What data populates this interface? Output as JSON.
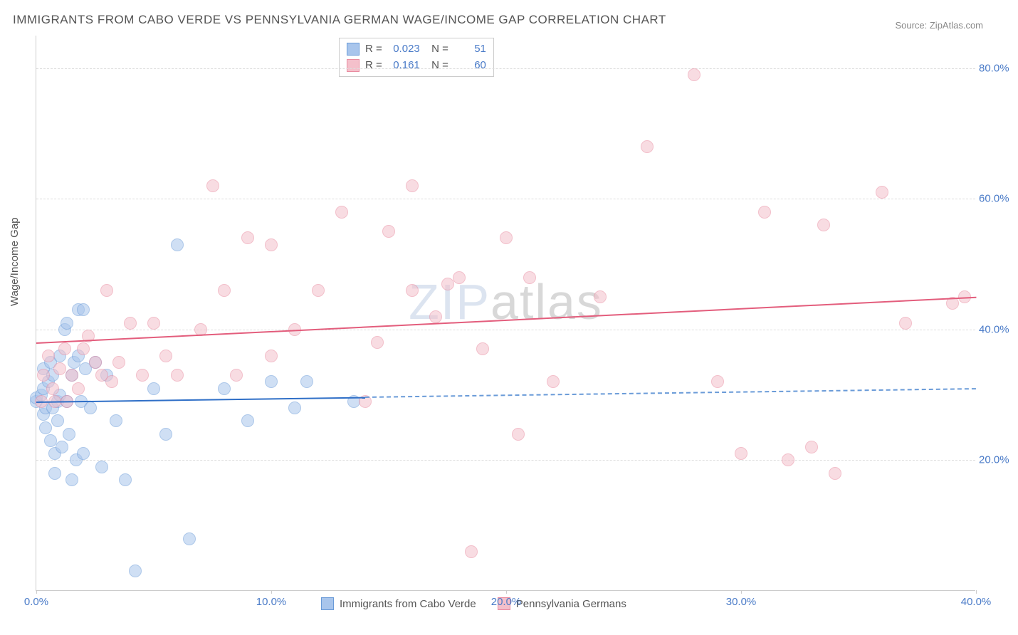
{
  "title": "IMMIGRANTS FROM CABO VERDE VS PENNSYLVANIA GERMAN WAGE/INCOME GAP CORRELATION CHART",
  "source": "Source: ZipAtlas.com",
  "y_axis_label": "Wage/Income Gap",
  "watermark_a": "ZIP",
  "watermark_b": "atlas",
  "chart": {
    "type": "scatter",
    "background_color": "#ffffff",
    "grid_color": "#dddddd",
    "axis_color": "#cccccc",
    "tick_label_color": "#4a7bc8",
    "title_fontsize": 17,
    "label_fontsize": 15,
    "xlim": [
      0,
      40
    ],
    "ylim": [
      0,
      85
    ],
    "x_ticks": [
      0,
      10,
      20,
      30,
      40
    ],
    "x_tick_labels": [
      "0.0%",
      "10.0%",
      "20.0%",
      "30.0%",
      "40.0%"
    ],
    "y_ticks": [
      20,
      40,
      60,
      80
    ],
    "y_tick_labels": [
      "20.0%",
      "40.0%",
      "60.0%",
      "80.0%"
    ],
    "marker_radius": 9,
    "marker_opacity": 0.55,
    "series": [
      {
        "name": "Immigrants from Cabo Verde",
        "color_fill": "#a8c5ec",
        "color_stroke": "#6a9bd8",
        "line_color": "#2f6fc7",
        "R": "0.023",
        "N": "51",
        "trend": {
          "x1": 0,
          "y1": 29,
          "x2": 40,
          "y2": 31,
          "solid_until_x": 14
        },
        "points": [
          [
            0.0,
            29
          ],
          [
            0.0,
            29.5
          ],
          [
            0.2,
            30
          ],
          [
            0.3,
            27
          ],
          [
            0.3,
            31
          ],
          [
            0.3,
            34
          ],
          [
            0.4,
            28
          ],
          [
            0.4,
            25
          ],
          [
            0.5,
            32
          ],
          [
            0.6,
            23
          ],
          [
            0.6,
            35
          ],
          [
            0.7,
            28
          ],
          [
            0.7,
            33
          ],
          [
            0.8,
            21
          ],
          [
            0.8,
            18
          ],
          [
            0.9,
            29
          ],
          [
            0.9,
            26
          ],
          [
            1.0,
            36
          ],
          [
            1.0,
            30
          ],
          [
            1.1,
            22
          ],
          [
            1.2,
            40
          ],
          [
            1.3,
            41
          ],
          [
            1.3,
            29
          ],
          [
            1.4,
            24
          ],
          [
            1.5,
            33
          ],
          [
            1.5,
            17
          ],
          [
            1.6,
            35
          ],
          [
            1.7,
            20
          ],
          [
            1.8,
            36
          ],
          [
            1.8,
            43
          ],
          [
            1.9,
            29
          ],
          [
            2.0,
            21
          ],
          [
            2.0,
            43
          ],
          [
            2.1,
            34
          ],
          [
            2.3,
            28
          ],
          [
            2.5,
            35
          ],
          [
            2.8,
            19
          ],
          [
            3.0,
            33
          ],
          [
            3.4,
            26
          ],
          [
            3.8,
            17
          ],
          [
            4.2,
            3
          ],
          [
            5.0,
            31
          ],
          [
            5.5,
            24
          ],
          [
            6.0,
            53
          ],
          [
            6.5,
            8
          ],
          [
            8.0,
            31
          ],
          [
            9.0,
            26
          ],
          [
            10.0,
            32
          ],
          [
            11.0,
            28
          ],
          [
            11.5,
            32
          ],
          [
            13.5,
            29
          ]
        ]
      },
      {
        "name": "Pennsylvania Germans",
        "color_fill": "#f4c0cb",
        "color_stroke": "#e98ba0",
        "line_color": "#e35d7c",
        "R": "0.161",
        "N": "60",
        "trend": {
          "x1": 0,
          "y1": 38,
          "x2": 40,
          "y2": 45,
          "solid_until_x": 40
        },
        "points": [
          [
            0.2,
            29
          ],
          [
            0.3,
            33
          ],
          [
            0.5,
            36
          ],
          [
            0.7,
            31
          ],
          [
            0.8,
            29
          ],
          [
            1.0,
            34
          ],
          [
            1.2,
            37
          ],
          [
            1.3,
            29
          ],
          [
            1.5,
            33
          ],
          [
            1.8,
            31
          ],
          [
            2.0,
            37
          ],
          [
            2.2,
            39
          ],
          [
            2.5,
            35
          ],
          [
            2.8,
            33
          ],
          [
            3.0,
            46
          ],
          [
            3.2,
            32
          ],
          [
            3.5,
            35
          ],
          [
            4.0,
            41
          ],
          [
            4.5,
            33
          ],
          [
            5.0,
            41
          ],
          [
            5.5,
            36
          ],
          [
            6.0,
            33
          ],
          [
            7.0,
            40
          ],
          [
            7.5,
            62
          ],
          [
            8.0,
            46
          ],
          [
            8.5,
            33
          ],
          [
            9.0,
            54
          ],
          [
            10.0,
            53
          ],
          [
            10.0,
            36
          ],
          [
            11.0,
            40
          ],
          [
            12.0,
            46
          ],
          [
            13.0,
            58
          ],
          [
            14.0,
            29
          ],
          [
            14.5,
            38
          ],
          [
            15.0,
            55
          ],
          [
            16.0,
            46
          ],
          [
            16.0,
            62
          ],
          [
            17.0,
            42
          ],
          [
            17.5,
            47
          ],
          [
            18.0,
            48
          ],
          [
            18.5,
            6
          ],
          [
            19.0,
            37
          ],
          [
            20.0,
            54
          ],
          [
            20.5,
            24
          ],
          [
            21.0,
            48
          ],
          [
            22.0,
            32
          ],
          [
            24.0,
            45
          ],
          [
            26.0,
            68
          ],
          [
            28.0,
            79
          ],
          [
            29.0,
            32
          ],
          [
            30.0,
            21
          ],
          [
            31.0,
            58
          ],
          [
            32.0,
            20
          ],
          [
            33.0,
            22
          ],
          [
            33.5,
            56
          ],
          [
            34.0,
            18
          ],
          [
            36.0,
            61
          ],
          [
            37.0,
            41
          ],
          [
            39.0,
            44
          ],
          [
            39.5,
            45
          ]
        ]
      }
    ]
  }
}
